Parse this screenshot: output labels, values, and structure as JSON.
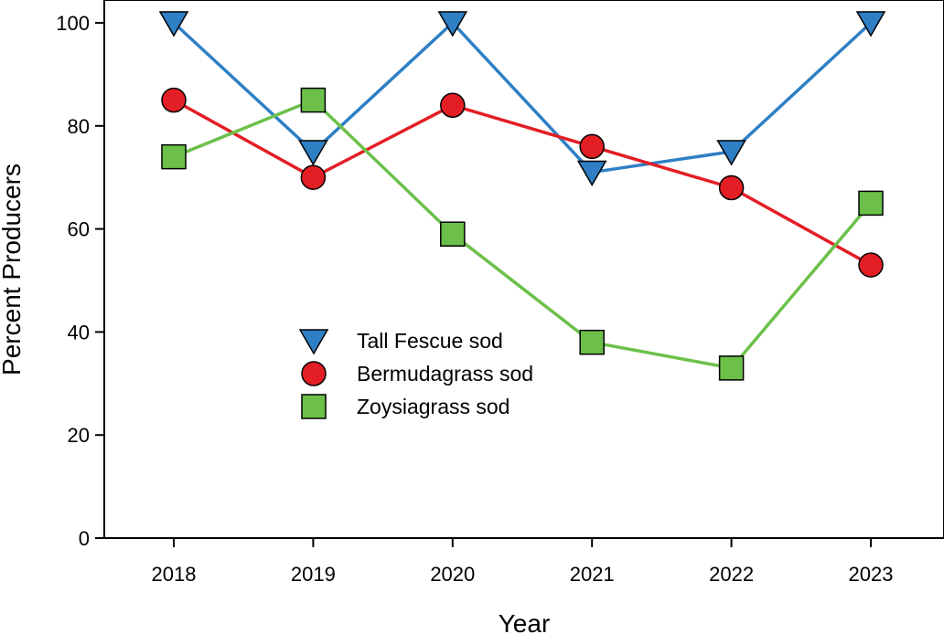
{
  "chart_data": {
    "type": "line",
    "title": "",
    "xlabel": "Year",
    "ylabel": "Percent Producers",
    "categories": [
      "2018",
      "2019",
      "2020",
      "2021",
      "2022",
      "2023"
    ],
    "ylim": [
      0,
      100
    ],
    "yticks": [
      "0",
      "20",
      "40",
      "60",
      "80",
      "100"
    ],
    "grid": false,
    "legend_position": "center-left",
    "series": [
      {
        "name": "Tall Fescue sod",
        "color": "#2E7FC4",
        "marker": "triangle-down",
        "values": [
          100,
          75,
          100,
          71,
          75,
          100
        ]
      },
      {
        "name": "Bermudagrass sod",
        "color": "#E31E24",
        "marker": "circle",
        "values": [
          85,
          70,
          84,
          76,
          68,
          53
        ]
      },
      {
        "name": "Zoysiagrass sod",
        "color": "#6CC04A",
        "marker": "square",
        "values": [
          74,
          85,
          59,
          38,
          33,
          65
        ]
      }
    ]
  }
}
